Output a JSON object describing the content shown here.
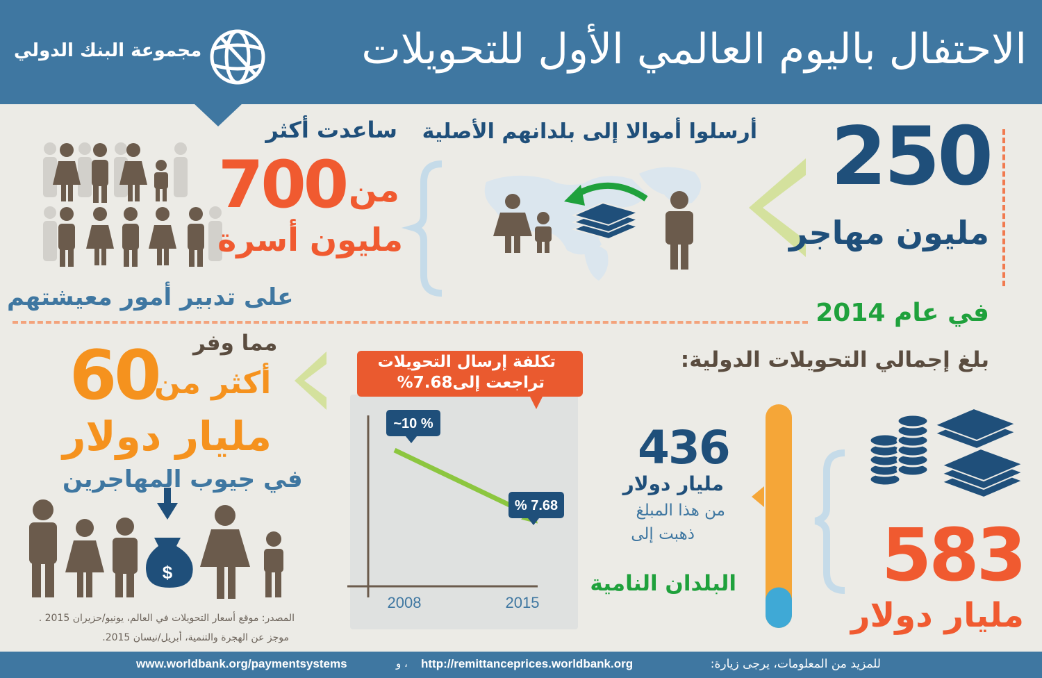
{
  "header": {
    "title": "الاحتفال باليوم العالمي الأول للتحويلات",
    "org_name": "مجموعة البنك الدولي",
    "logo_icon": "globe-icon"
  },
  "migrants": {
    "value": "250",
    "unit": "مليون مهاجر",
    "sent_text": "أرسلوا أموالا إلى بلدانهم الأصلية"
  },
  "families": {
    "helped_text": "ساعدت أكثر",
    "prefix": "من",
    "value": "700",
    "unit": "مليون أسرة",
    "livelihood_text": "على تدبير أمور معيشتهم"
  },
  "year": {
    "label": "في عام 2014"
  },
  "totals": {
    "label": "بلغ إجمالي التحويلات الدولية:",
    "value": "583",
    "unit": "مليار دولار",
    "developing_value": "436",
    "developing_unit": "مليار دولار",
    "portion_line1": "من هذا المبلغ",
    "portion_line2": "ذهبت إلى",
    "developing_label": "البلدان النامية",
    "developing_share": 0.75
  },
  "cost": {
    "banner_line1": "تكلفة إرسال التحويلات",
    "banner_line2": "تراجعت إلى7.68%"
  },
  "chart_data": {
    "type": "line",
    "x": [
      2008,
      2015
    ],
    "x_tick_labels": [
      "2008",
      "2015"
    ],
    "values": [
      10,
      7.68
    ],
    "point_labels": [
      "~10 %",
      "% 7.68"
    ],
    "title": "",
    "xlabel": "",
    "ylabel": "",
    "grid": false,
    "line_color": "#8cc63f"
  },
  "savings": {
    "saved_text": "مما وفر",
    "more_than": "أكثر من",
    "value": "60",
    "unit": "مليار دولار",
    "pockets_text": "في جيوب المهاجرين"
  },
  "source": {
    "line1": "المصدر: موقع أسعار التحويلات في العالم، يونيو/حزيران 2015 .",
    "line2": "موجز عن الهجرة والتنمية، أبريل/نيسان  2015."
  },
  "footer": {
    "more_info": "للمزيد من المعلومات، يرجى زيارة:",
    "link1": "http://remittanceprices.worldbank.org",
    "and": "، و",
    "link2": "www.worldbank.org/paymentsystems"
  },
  "colors": {
    "header_blue": "#3f77a1",
    "navy": "#1f4f7a",
    "orange_red": "#f05a30",
    "orange": "#f5921e",
    "green": "#1fa13c",
    "brown": "#5a4c3f",
    "background": "#ecebe6"
  }
}
